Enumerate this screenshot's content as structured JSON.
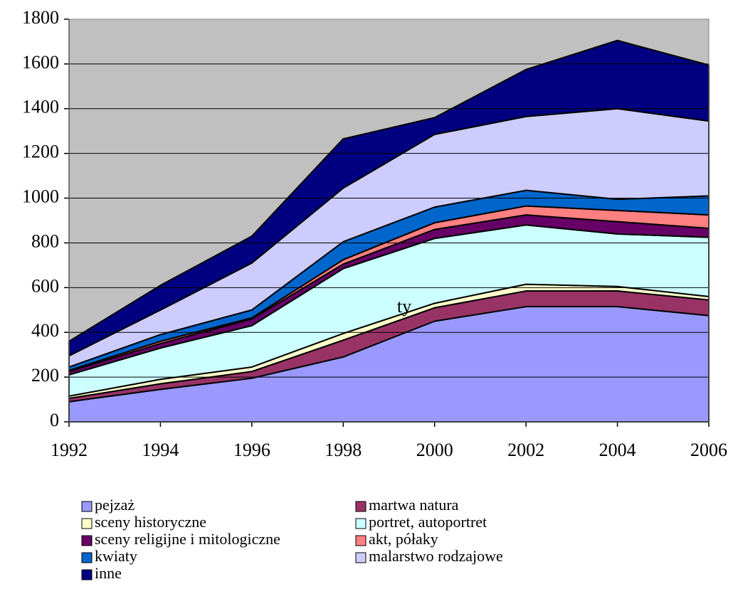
{
  "chart_data": {
    "type": "stacked_area",
    "x": [
      1992,
      1994,
      1996,
      1998,
      2000,
      2002,
      2004,
      2006
    ],
    "xlim": [
      1992,
      2006
    ],
    "xticks": [
      1992,
      1994,
      1996,
      1998,
      2000,
      2002,
      2004,
      2006
    ],
    "ylim": [
      0,
      1800
    ],
    "yticks": [
      0,
      200,
      400,
      600,
      800,
      1000,
      1200,
      1400,
      1600,
      1800
    ],
    "grid": true,
    "plot_background": "#c0c0c0",
    "legend_position": "bottom",
    "annotations": [
      "ty"
    ],
    "series": [
      {
        "name": "pejzaż",
        "color": "#9999ff",
        "values": [
          90,
          145,
          195,
          290,
          450,
          515,
          515,
          475
        ]
      },
      {
        "name": "martwa natura",
        "color": "#993366",
        "values": [
          15,
          25,
          30,
          75,
          60,
          70,
          70,
          70
        ]
      },
      {
        "name": "sceny historyczne",
        "color": "#ffffcc",
        "values": [
          10,
          20,
          20,
          30,
          20,
          30,
          20,
          15
        ]
      },
      {
        "name": "portret, autoportret",
        "color": "#ccffff",
        "values": [
          95,
          140,
          185,
          290,
          290,
          265,
          235,
          265
        ]
      },
      {
        "name": "sceny religijne i mitologiczne",
        "color": "#660066",
        "values": [
          15,
          20,
          30,
          20,
          40,
          45,
          55,
          40
        ]
      },
      {
        "name": "akt, półaky",
        "color": "#ff8080",
        "values": [
          5,
          10,
          5,
          20,
          30,
          40,
          50,
          60
        ]
      },
      {
        "name": "kwiaty",
        "color": "#0066cc",
        "values": [
          15,
          30,
          35,
          80,
          70,
          70,
          50,
          85
        ]
      },
      {
        "name": "malarstwo rodzajowe",
        "color": "#ccccff",
        "values": [
          50,
          110,
          210,
          240,
          325,
          330,
          405,
          335
        ]
      },
      {
        "name": "inne",
        "color": "#000080",
        "values": [
          65,
          110,
          120,
          220,
          75,
          210,
          305,
          250
        ]
      }
    ]
  }
}
